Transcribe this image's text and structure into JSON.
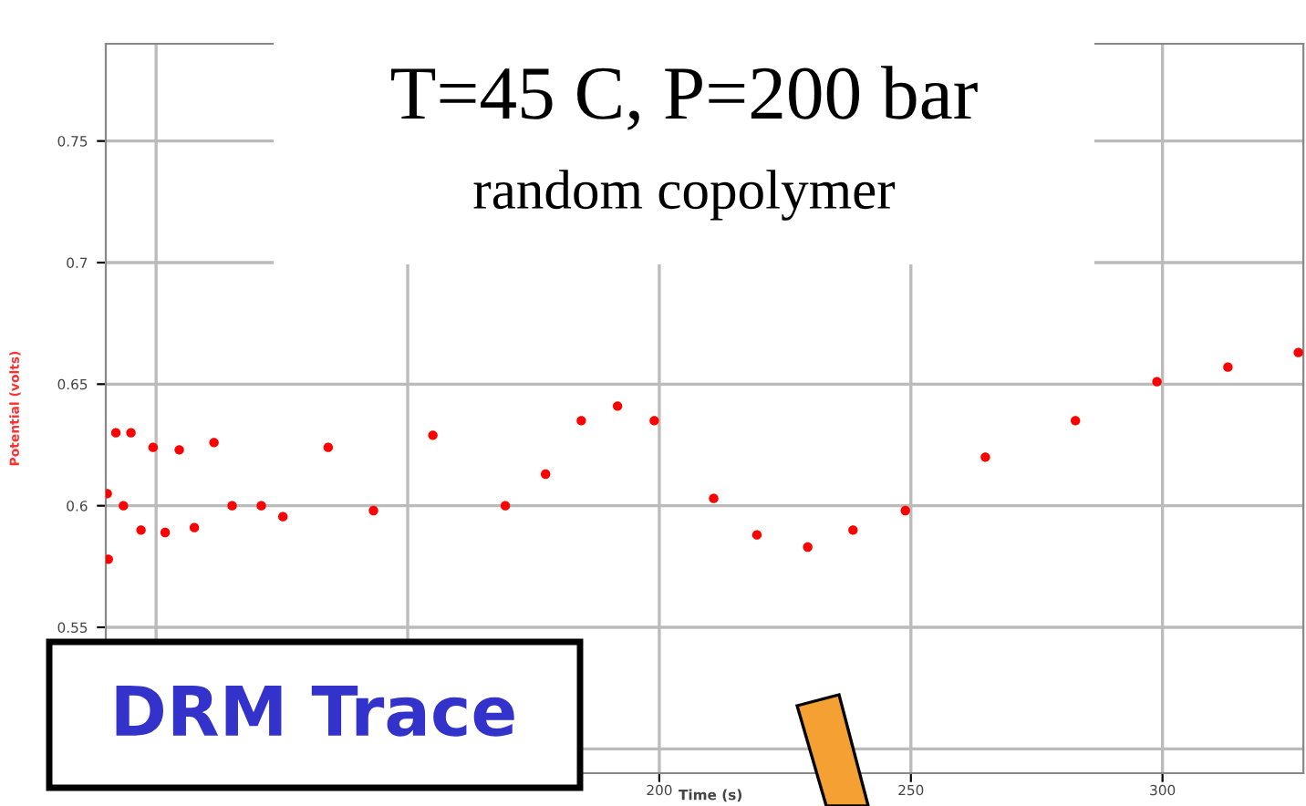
{
  "chart_data": {
    "type": "scatter",
    "xlabel": "Time (s)",
    "ylabel": "Potential (volts)",
    "annotations": [
      "T=45 C, P=200 bar",
      "random copolymer",
      "DRM Trace"
    ],
    "x": [
      90.3,
      90.5,
      92.0,
      93.5,
      95.0,
      97.0,
      99.4,
      101.8,
      104.6,
      107.6,
      111.5,
      115.1,
      120.9,
      125.2,
      134.2,
      143.2,
      155.0,
      169.4,
      177.4,
      184.5,
      191.7,
      199.0,
      210.8,
      219.4,
      229.5,
      238.5,
      248.9,
      264.8,
      282.7,
      298.9,
      313.0,
      327.0
    ],
    "series": [
      {
        "color": "#ff0000",
        "values": [
          0.605,
          0.578,
          0.63,
          0.6,
          0.63,
          0.59,
          0.624,
          0.589,
          0.623,
          0.591,
          0.626,
          0.6,
          0.6,
          0.5955,
          0.624,
          0.598,
          0.629,
          0.6,
          0.613,
          0.635,
          0.641,
          0.635,
          0.603,
          0.588,
          0.583,
          0.59,
          0.598,
          0.62,
          0.635,
          0.651,
          0.657,
          0.663
        ]
      }
    ],
    "xlim": [
      90,
      328
    ],
    "ylim": [
      0.49,
      0.79
    ],
    "xticks": [
      {
        "value": 100,
        "label": null
      },
      {
        "value": 150,
        "label": null
      },
      200,
      250,
      300
    ],
    "yticks": [
      {
        "value": 0.5,
        "label": null
      },
      0.55,
      0.6,
      0.65,
      0.7,
      0.75
    ],
    "grid": true
  }
}
